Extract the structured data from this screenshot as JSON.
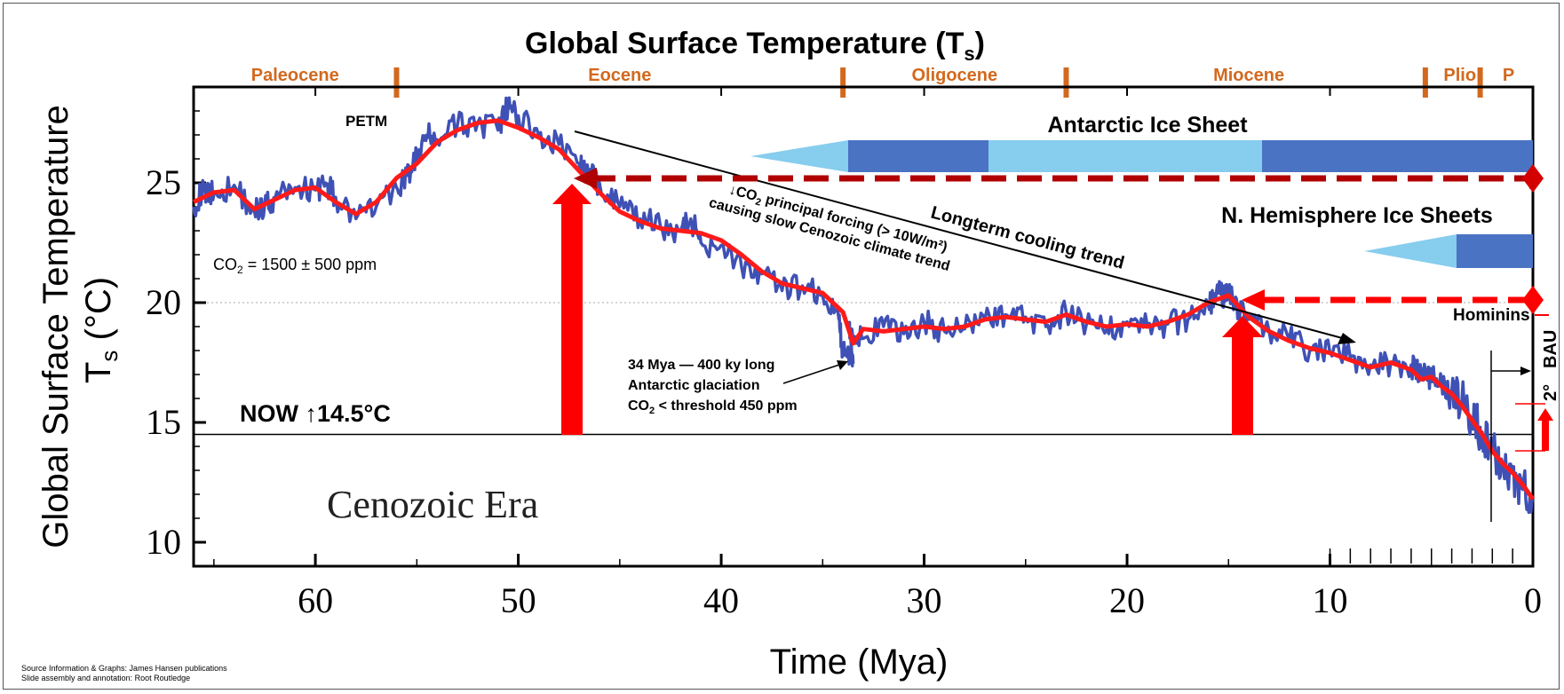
{
  "chart_data": {
    "type": "line",
    "title": "Global Surface Temperature (T",
    "title_sub": "s",
    "title_end": ")",
    "xlabel": "Time (Mya)",
    "ylabel_line1": "Global Surface Temperature",
    "ylabel_line2": "T",
    "ylabel_sub": "s",
    "ylabel_unit": " (°C)",
    "xlim": [
      66,
      0
    ],
    "ylim": [
      9,
      29
    ],
    "x_ticks": [
      60,
      50,
      40,
      30,
      20,
      10,
      0
    ],
    "y_ticks": [
      10,
      15,
      20,
      25
    ],
    "epochs": [
      {
        "name": "Paleocene",
        "center": 61,
        "boundary": 56
      },
      {
        "name": "Eocene",
        "center": 45,
        "boundary": 34
      },
      {
        "name": "Oligocene",
        "center": 28.5,
        "boundary": 23
      },
      {
        "name": "Miocene",
        "center": 14,
        "boundary": 5.3
      },
      {
        "name": "Plio",
        "center": 3.6,
        "boundary": 2.6
      },
      {
        "name": "P",
        "center": 1.2,
        "boundary": null
      }
    ],
    "series": [
      {
        "color": "#3f51b5",
        "x": [
          66,
          65.5,
          65,
          64,
          63,
          62.5,
          62,
          61,
          60,
          59.5,
          59,
          58,
          57,
          56,
          55.5,
          55,
          54.5,
          54,
          53,
          52,
          51,
          50.5,
          50,
          49,
          48,
          47,
          46.5,
          46,
          45,
          44,
          43,
          42,
          41.5,
          41,
          40,
          39,
          38,
          37,
          36,
          35,
          34.2,
          34,
          33.5,
          33.7,
          33,
          32,
          31,
          30,
          29,
          28,
          27,
          26,
          25,
          24,
          23,
          22,
          21,
          20,
          19,
          18,
          17,
          16,
          15.5,
          15,
          14.5,
          14,
          13,
          12,
          11,
          10,
          9,
          8,
          7,
          6,
          5.5,
          5,
          4.5,
          4,
          3.5,
          3,
          2.5,
          2,
          1.5,
          1,
          0.5,
          0
        ],
        "y": [
          24,
          24.7,
          24.5,
          24.9,
          23.8,
          24.1,
          24.3,
          24.8,
          24.7,
          25.0,
          24.4,
          23.5,
          24.0,
          24.8,
          25.3,
          26.0,
          27.0,
          26.8,
          27.4,
          27.5,
          27.2,
          28.2,
          27.8,
          27.0,
          26.6,
          25.8,
          25.3,
          25.0,
          24.0,
          23.5,
          23.2,
          23.0,
          23.5,
          22.5,
          22.4,
          21.5,
          21.2,
          20.5,
          20.7,
          20.3,
          19.3,
          18.0,
          17.5,
          19.0,
          18.5,
          19.0,
          18.7,
          19.2,
          18.8,
          18.9,
          19.3,
          19.5,
          19.4,
          19.0,
          19.6,
          19.1,
          18.9,
          19.2,
          19.0,
          19.1,
          19.3,
          19.9,
          20.4,
          20.3,
          19.8,
          19.3,
          18.8,
          18.5,
          18.0,
          17.9,
          17.7,
          17.4,
          17.5,
          17.4,
          17.0,
          16.9,
          16.7,
          16.3,
          15.9,
          15.2,
          14.6,
          14.0,
          13.3,
          12.9,
          12.2,
          11.8
        ]
      },
      {
        "color": "#ff1a1a",
        "x": [
          66,
          65,
          64,
          63,
          62,
          61,
          60,
          59,
          58,
          57,
          56,
          55,
          54,
          53,
          52,
          51,
          50,
          49,
          48,
          47,
          46,
          45,
          44,
          43,
          42,
          41,
          40,
          39,
          38,
          37,
          36,
          35,
          34,
          33.5,
          33,
          32,
          31,
          30,
          29,
          28,
          27,
          26,
          25,
          24,
          23,
          22,
          21,
          20,
          19,
          18,
          17,
          16,
          15,
          14,
          13,
          12,
          11,
          10,
          9,
          8,
          7,
          6,
          5.5,
          5,
          4.5,
          4,
          3.5,
          3,
          2.5,
          2,
          1.5,
          1,
          0.5,
          0
        ],
        "y": [
          24.2,
          24.6,
          24.7,
          23.9,
          24.3,
          24.7,
          24.8,
          24.2,
          23.7,
          24.2,
          25.2,
          25.8,
          26.7,
          27.2,
          27.5,
          27.6,
          27.3,
          26.9,
          26.4,
          25.5,
          24.6,
          23.8,
          23.4,
          23.1,
          23.0,
          22.9,
          22.6,
          22.0,
          21.3,
          20.8,
          20.6,
          20.4,
          19.6,
          18.3,
          18.9,
          18.8,
          18.9,
          19.0,
          18.9,
          19.0,
          19.3,
          19.4,
          19.3,
          19.2,
          19.5,
          19.2,
          19.0,
          19.1,
          19.0,
          19.2,
          19.5,
          20.0,
          20.3,
          19.4,
          18.8,
          18.4,
          18.1,
          17.9,
          17.6,
          17.3,
          17.5,
          17.2,
          16.8,
          16.9,
          16.5,
          16.2,
          15.7,
          15.1,
          14.5,
          13.8,
          13.3,
          12.9,
          12.4,
          11.8
        ]
      }
    ],
    "reference_lines": [
      {
        "y": 14.5,
        "style": "solid"
      },
      {
        "y": 20,
        "style": "dotted"
      }
    ],
    "annotations": {
      "petm": "PETM",
      "co2_pre": "CO",
      "co2_sub": "2",
      "co2_post": " = 1500 ± 500 ppm",
      "now": "NOW ↑14.5°C",
      "era": "Cenozoic Era",
      "antarctic": "Antarctic Ice Sheet",
      "nh_ice": "N. Hemisphere Ice Sheets",
      "cooling": "Longterm cooling trend",
      "forcing_line1_pre": "↓CO",
      "forcing_line1_sub": "2",
      "forcing_line1_post": " principal forcing (> 10W/m²)",
      "forcing_line2": "causing slow Cenozoic climate trend",
      "glaciation_line1": "34 Mya — 400 ky long",
      "glaciation_line2": "Antarctic glaciation",
      "glaciation_line3_pre": "CO",
      "glaciation_line3_sub": "2",
      "glaciation_line3_post": " < threshold 450 ppm",
      "hominins": "Hominins",
      "bau": "BAU",
      "two_deg": "2°"
    },
    "source_line1": "Source Information & Graphs: James Hansen publications",
    "source_line2": "Slide assembly and annotation: Root Routledge",
    "colors": {
      "raw": "#3f51b5",
      "smooth": "#ff1a1a",
      "epoch": "#d2691e",
      "ice_light": "#87cdee",
      "ice_dark": "#4a73c4",
      "arrow_red": "#ff0000",
      "dashed_dark": "#b00000"
    }
  }
}
